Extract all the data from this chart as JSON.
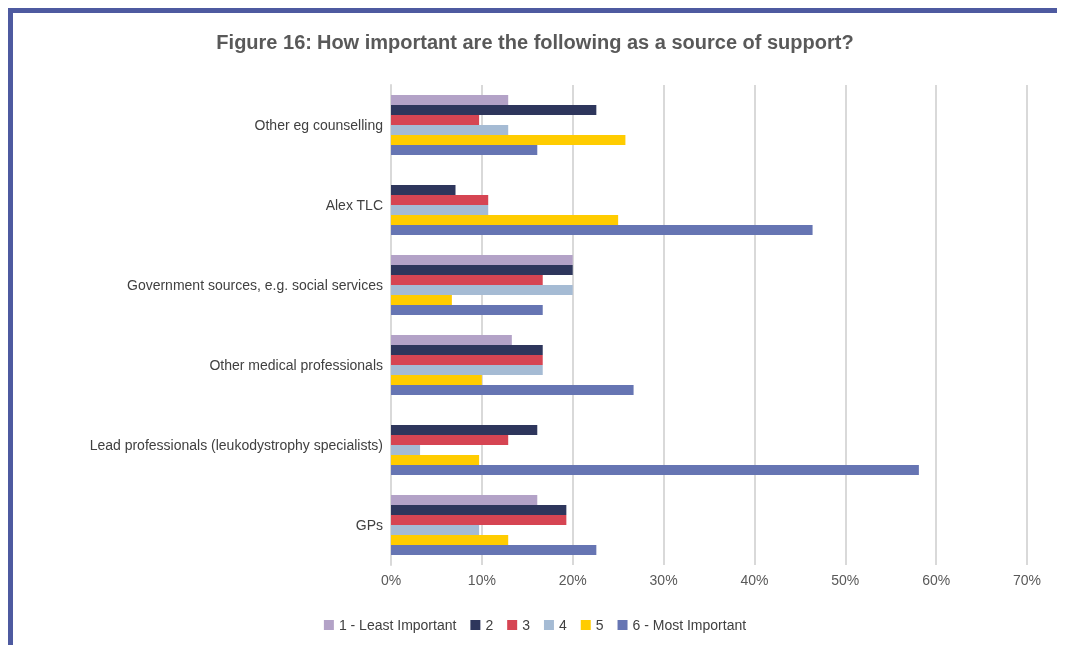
{
  "chart_data": {
    "type": "bar",
    "orientation": "horizontal",
    "title": "Figure 16: How important are the following as a source of support?",
    "categories": [
      "Other eg counselling",
      "Alex TLC",
      "Government sources, e.g. social services",
      "Other medical professionals",
      "Lead professionals (leukodystrophy specialists)",
      "GPs"
    ],
    "series": [
      {
        "name": "1 - Least Important",
        "color": "#b3a2c7",
        "values": [
          12.9,
          0,
          20,
          13.3,
          0,
          16.1
        ]
      },
      {
        "name": "2",
        "color": "#2e365c",
        "values": [
          22.6,
          7.1,
          20,
          16.7,
          16.1,
          19.3
        ]
      },
      {
        "name": "3",
        "color": "#d64553",
        "values": [
          9.7,
          10.7,
          16.7,
          16.7,
          12.9,
          19.3
        ]
      },
      {
        "name": "4",
        "color": "#a5bbd4",
        "values": [
          12.9,
          10.7,
          20,
          16.7,
          3.2,
          9.7
        ]
      },
      {
        "name": "5",
        "color": "#ffcc00",
        "values": [
          25.8,
          25,
          6.7,
          10,
          9.7,
          12.9
        ]
      },
      {
        "name": "6 - Most Important",
        "color": "#6675b3",
        "values": [
          16.1,
          46.4,
          16.7,
          26.7,
          58.1,
          22.6
        ]
      }
    ],
    "xlim": [
      0,
      70
    ],
    "xticks": [
      {
        "value": 0,
        "label": "0%"
      },
      {
        "value": 10,
        "label": "10%"
      },
      {
        "value": 20,
        "label": "20%"
      },
      {
        "value": 30,
        "label": "30%"
      },
      {
        "value": 40,
        "label": "40%"
      },
      {
        "value": 50,
        "label": "50%"
      },
      {
        "value": 60,
        "label": "60%"
      },
      {
        "value": 70,
        "label": "70%"
      }
    ],
    "grid": "x",
    "legend": "bottom"
  }
}
